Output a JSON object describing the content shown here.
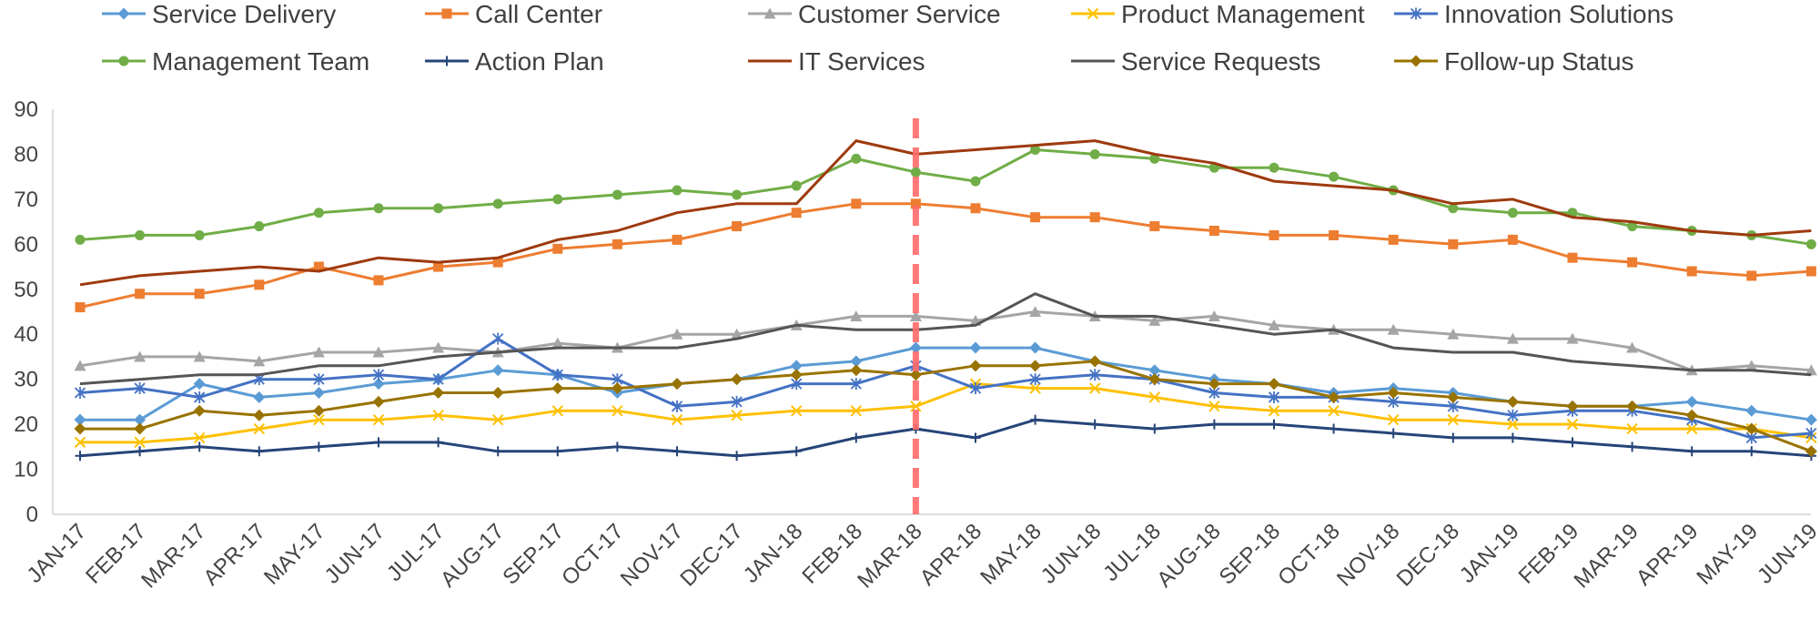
{
  "chart_data": {
    "type": "line",
    "title": "",
    "xlabel": "",
    "ylabel": "",
    "ylim": [
      0,
      90
    ],
    "yticks": [
      0,
      10,
      20,
      30,
      40,
      50,
      60,
      70,
      80,
      90
    ],
    "grid": false,
    "legend_position": "top",
    "reference_line": {
      "category": "MAR-18",
      "color": "#FF6B6B",
      "style": "dashed"
    },
    "categories": [
      "JAN-17",
      "FEB-17",
      "MAR-17",
      "APR-17",
      "MAY-17",
      "JUN-17",
      "JUL-17",
      "AUG-17",
      "SEP-17",
      "OCT-17",
      "NOV-17",
      "DEC-17",
      "JAN-18",
      "FEB-18",
      "MAR-18",
      "APR-18",
      "MAY-18",
      "JUN-18",
      "JUL-18",
      "AUG-18",
      "SEP-18",
      "OCT-18",
      "NOV-18",
      "DEC-18",
      "JAN-19",
      "FEB-19",
      "MAR-19",
      "APR-19",
      "MAY-19",
      "JUN-19"
    ],
    "series": [
      {
        "name": "Service Delivery",
        "color": "#5B9BD5",
        "marker": "diamond",
        "values": [
          21,
          21,
          29,
          26,
          27,
          29,
          30,
          32,
          31,
          27,
          29,
          30,
          33,
          34,
          37,
          37,
          37,
          34,
          32,
          30,
          29,
          27,
          28,
          27,
          25,
          24,
          24,
          25,
          23,
          21
        ]
      },
      {
        "name": "Call Center",
        "color": "#ED7D31",
        "marker": "square",
        "values": [
          46,
          49,
          49,
          51,
          55,
          52,
          55,
          56,
          59,
          60,
          61,
          64,
          67,
          69,
          69,
          68,
          66,
          66,
          64,
          63,
          62,
          62,
          61,
          60,
          61,
          57,
          56,
          54,
          53,
          54
        ]
      },
      {
        "name": "Customer Service",
        "color": "#A5A5A5",
        "marker": "triangle",
        "values": [
          33,
          35,
          35,
          34,
          36,
          36,
          37,
          36,
          38,
          37,
          40,
          40,
          42,
          44,
          44,
          43,
          45,
          44,
          43,
          44,
          42,
          41,
          41,
          40,
          39,
          39,
          37,
          32,
          33,
          32
        ]
      },
      {
        "name": "Product Management",
        "color": "#FFC000",
        "marker": "x",
        "values": [
          16,
          16,
          17,
          19,
          21,
          21,
          22,
          21,
          23,
          23,
          21,
          22,
          23,
          23,
          24,
          29,
          28,
          28,
          26,
          24,
          23,
          23,
          21,
          21,
          20,
          20,
          19,
          19,
          19,
          17
        ]
      },
      {
        "name": "Innovation Solutions",
        "color": "#4472C4",
        "marker": "star",
        "values": [
          27,
          28,
          26,
          30,
          30,
          31,
          30,
          39,
          31,
          30,
          24,
          25,
          29,
          29,
          33,
          28,
          30,
          31,
          30,
          27,
          26,
          26,
          25,
          24,
          22,
          23,
          23,
          21,
          17,
          18
        ]
      },
      {
        "name": "Management Team",
        "color": "#70AD47",
        "marker": "circle",
        "values": [
          61,
          62,
          62,
          64,
          67,
          68,
          68,
          69,
          70,
          71,
          72,
          71,
          73,
          79,
          76,
          74,
          81,
          80,
          79,
          77,
          77,
          75,
          72,
          68,
          67,
          67,
          64,
          63,
          62,
          60
        ]
      },
      {
        "name": "Action Plan",
        "color": "#264478",
        "marker": "plus",
        "values": [
          13,
          14,
          15,
          14,
          15,
          16,
          16,
          14,
          14,
          15,
          14,
          13,
          14,
          17,
          19,
          17,
          21,
          20,
          19,
          20,
          20,
          19,
          18,
          17,
          17,
          16,
          15,
          14,
          14,
          13
        ]
      },
      {
        "name": "IT Services",
        "color": "#9E3A0E",
        "marker": "none",
        "values": [
          51,
          53,
          54,
          55,
          54,
          57,
          56,
          57,
          61,
          63,
          67,
          69,
          69,
          83,
          80,
          81,
          82,
          83,
          80,
          78,
          74,
          73,
          72,
          69,
          70,
          66,
          65,
          63,
          62,
          63
        ]
      },
      {
        "name": "Service Requests",
        "color": "#555555",
        "marker": "none",
        "values": [
          29,
          30,
          31,
          31,
          33,
          33,
          35,
          36,
          37,
          37,
          37,
          39,
          42,
          41,
          41,
          42,
          49,
          44,
          44,
          42,
          40,
          41,
          37,
          36,
          36,
          34,
          33,
          32,
          32,
          31
        ]
      },
      {
        "name": "Follow-up Status",
        "color": "#997300",
        "marker": "diamond",
        "values": [
          19,
          19,
          23,
          22,
          23,
          25,
          27,
          27,
          28,
          28,
          29,
          30,
          31,
          32,
          31,
          33,
          33,
          34,
          30,
          29,
          29,
          26,
          27,
          26,
          25,
          24,
          24,
          22,
          19,
          14
        ]
      }
    ]
  }
}
